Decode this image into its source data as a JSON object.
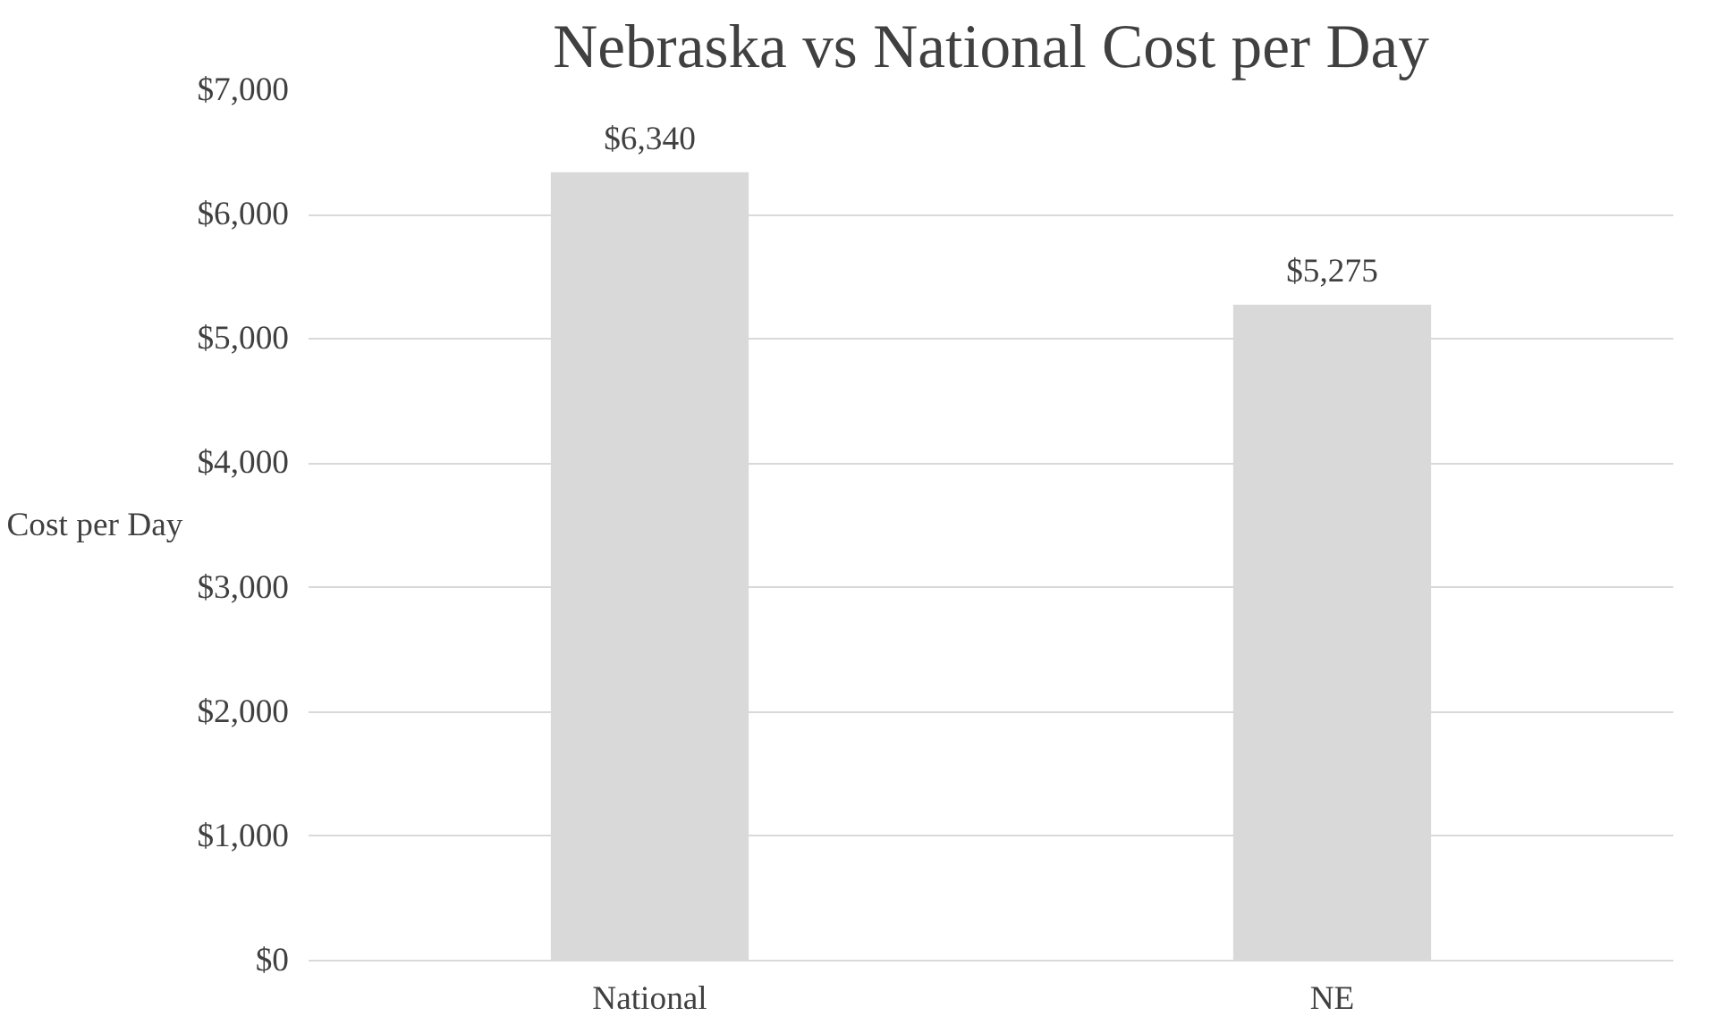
{
  "chart_data": {
    "type": "bar",
    "title": "Nebraska vs National Cost per Day",
    "ylabel": "Cost per Day",
    "categories": [
      "National",
      "NE"
    ],
    "values": [
      6340,
      5275
    ],
    "color": "#d9d9d9",
    "value_labels": [
      "$6,340",
      "$5,275"
    ],
    "ylim": [
      0,
      7000
    ],
    "yticks": [
      {
        "value": 0,
        "label": "$0"
      },
      {
        "value": 1000,
        "label": "$1,000"
      },
      {
        "value": 2000,
        "label": "$2,000"
      },
      {
        "value": 3000,
        "label": "$3,000"
      },
      {
        "value": 4000,
        "label": "$4,000"
      },
      {
        "value": 5000,
        "label": "$5,000"
      },
      {
        "value": 6000,
        "label": "$6,000"
      },
      {
        "value": 7000,
        "label": "$7,000"
      }
    ],
    "grid": "y"
  }
}
